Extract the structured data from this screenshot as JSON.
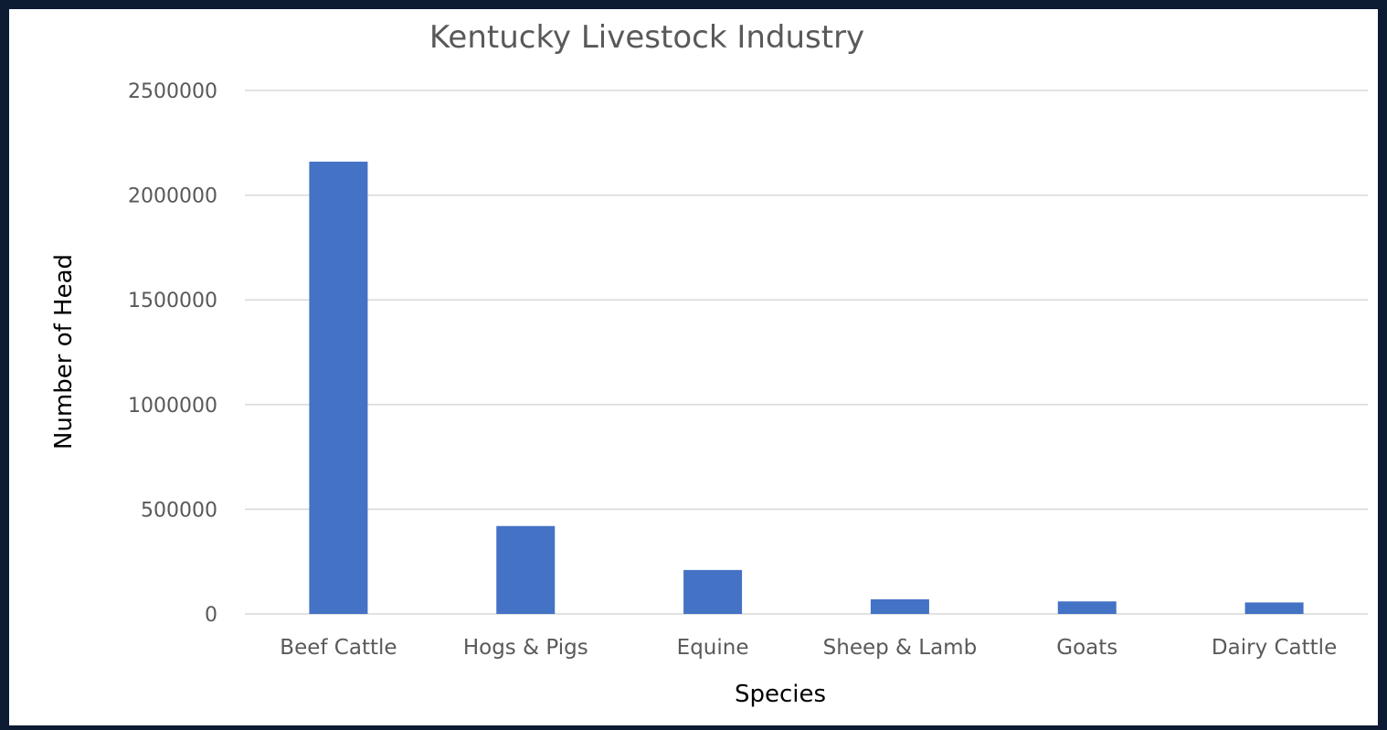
{
  "chart_data": {
    "type": "bar",
    "title": "Kentucky Livestock Industry",
    "xlabel": "Species",
    "ylabel": "Number of Head",
    "categories": [
      "Beef Cattle",
      "Hogs & Pigs",
      "Equine",
      "Sheep & Lamb",
      "Goats",
      "Dairy Cattle"
    ],
    "values": [
      2160000,
      420000,
      210000,
      70000,
      60000,
      55000
    ],
    "ylim": [
      0,
      2500000
    ],
    "yticks": [
      "0",
      "500000",
      "1000000",
      "1500000",
      "2000000",
      "2500000"
    ],
    "grid": true,
    "legend": "none",
    "colors": {
      "bar": "#4472c4",
      "frame": "#0d1b33",
      "gridline": "#d9d9d9",
      "text": "#595959",
      "title": "#595959",
      "axis_title": "#000000"
    }
  }
}
